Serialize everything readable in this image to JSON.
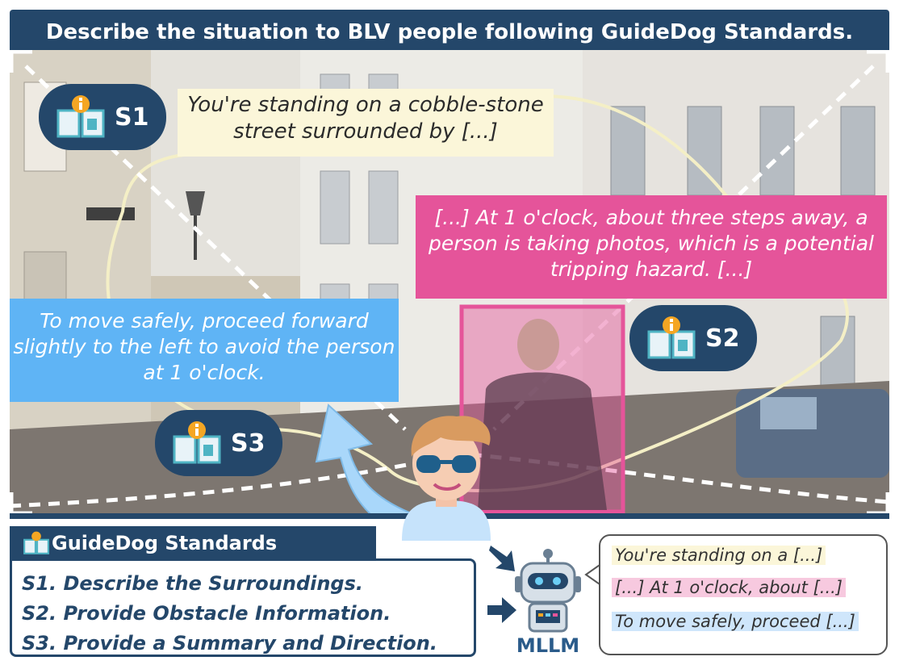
{
  "title": "Describe the situation to BLV people following GuideDog Standards.",
  "colors": {
    "navy": "#24476a",
    "s1": "#fbf6d9",
    "s2": "#e5549a",
    "s3": "#5fb4f5",
    "obstacle_box": "#e5549a",
    "arrow": "#a9d7fa"
  },
  "icons": {
    "standard": "book-info-icon",
    "user": "person-with-glasses-icon",
    "model": "robot-icon",
    "input": "arrow-icon"
  },
  "scene": {
    "s1_text": "You're standing on a cobble-stone street surrounded by [...]",
    "s2_text": "[...] At 1 o'clock, about three steps away, a person is taking photos, which is a potential tripping hazard. [...]",
    "s3_text": "To move safely, proceed forward slightly to the left to avoid the person at 1 o'clock.",
    "s1_label": "S1",
    "s2_label": "S2",
    "s3_label": "S3"
  },
  "standards": {
    "heading": "GuideDog Standards",
    "items": [
      "S1. Describe the Surroundings.",
      "S2. Provide Obstacle Information.",
      "S3. Provide a Summary and Direction."
    ]
  },
  "model": {
    "label": "MLLM"
  },
  "output": {
    "lines": [
      "You're standing on a [...]",
      "[...] At 1 o'clock, about [...]",
      "To move safely, proceed [...]"
    ]
  }
}
